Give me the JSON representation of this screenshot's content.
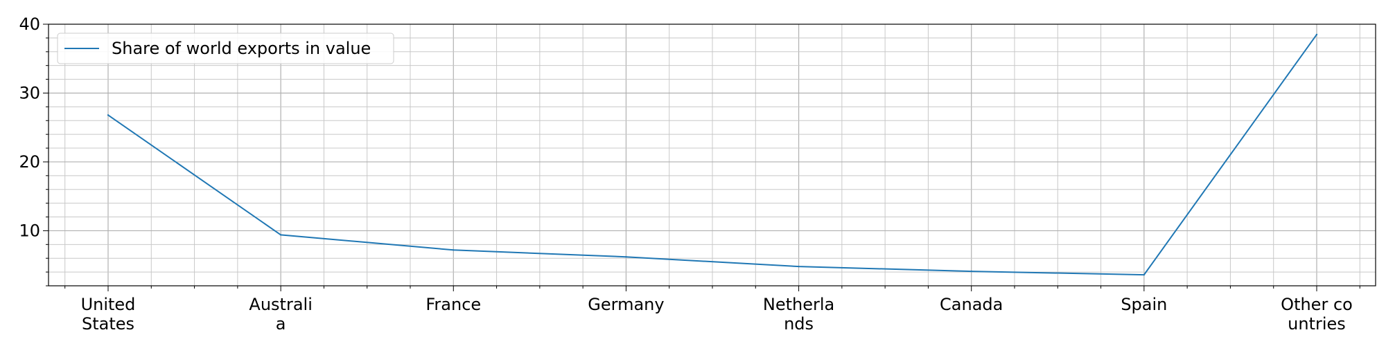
{
  "chart_data": {
    "type": "line",
    "title": "",
    "xlabel": "",
    "ylabel": "",
    "categories": [
      [
        "United",
        "States"
      ],
      [
        "Australi",
        "a"
      ],
      [
        "France"
      ],
      [
        "Germany"
      ],
      [
        "Netherla",
        "nds"
      ],
      [
        "Canada"
      ],
      [
        "Spain"
      ],
      [
        "Other co",
        "untries"
      ]
    ],
    "series": [
      {
        "name": "Share of world exports in value",
        "color": "#1f77b4",
        "values": [
          26.8,
          9.4,
          7.2,
          6.2,
          4.8,
          4.1,
          3.6,
          38.5
        ]
      }
    ],
    "yticks": [
      10,
      20,
      30,
      40
    ],
    "ylim": [
      2,
      40
    ],
    "grid": true,
    "legend_position": "top-left"
  }
}
